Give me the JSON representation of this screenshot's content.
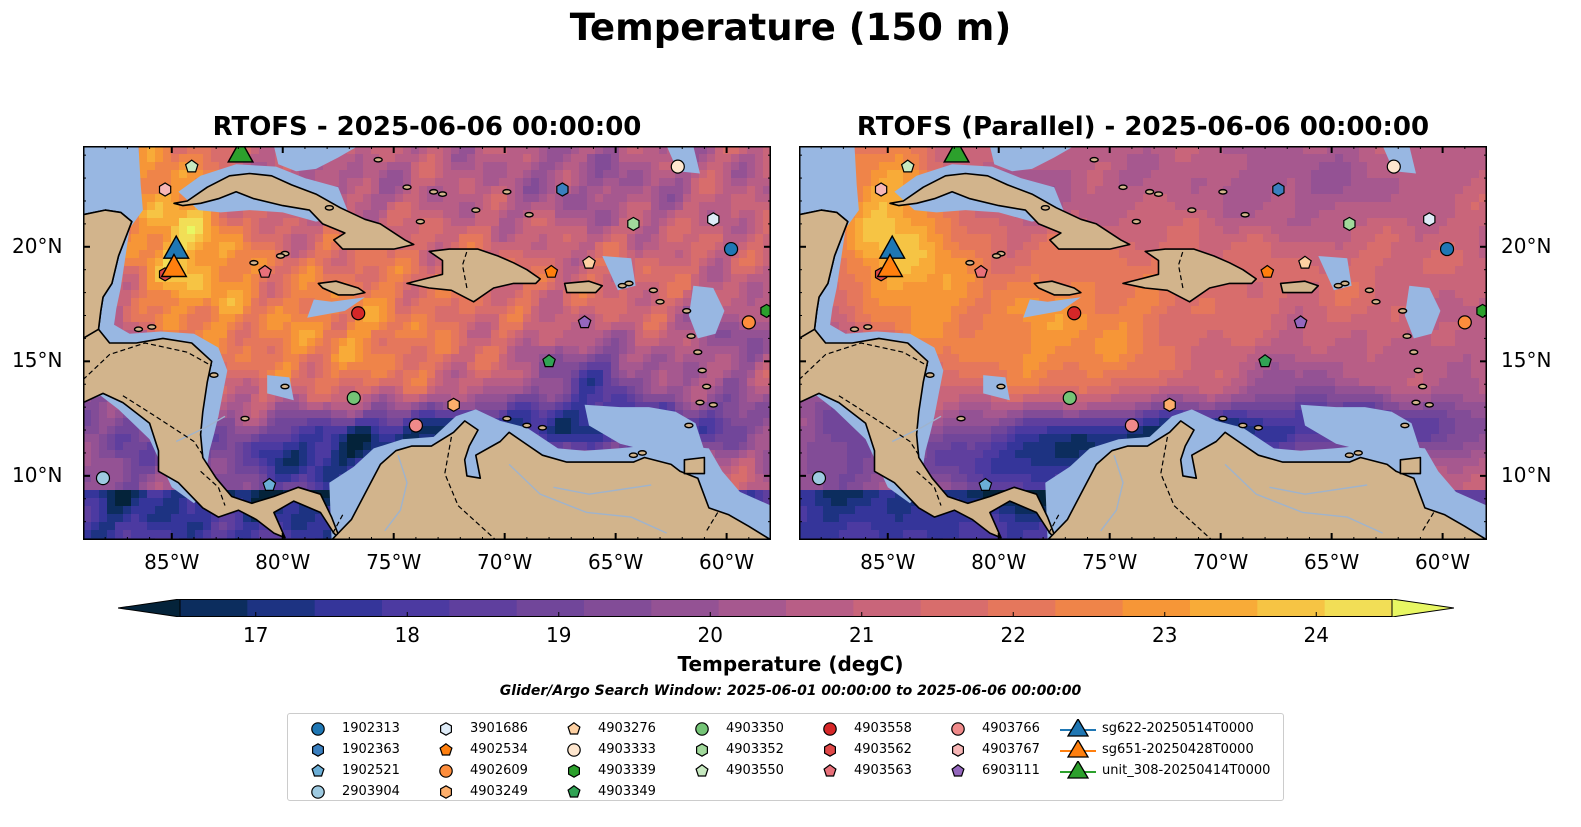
{
  "figure": {
    "suptitle": "Temperature (150 m)",
    "search_window": "Glider/Argo Search Window: 2025-06-01 00:00:00 to 2025-06-06 00:00:00"
  },
  "panels": [
    {
      "title": "RTOFS - 2025-06-06 00:00:00",
      "model": "RTOFS",
      "yaxis_side": "left"
    },
    {
      "title": "RTOFS (Parallel) - 2025-06-06 00:00:00",
      "model": "RTOFS (Parallel)",
      "yaxis_side": "right"
    }
  ],
  "axes": {
    "lon_range": [
      -89,
      -58
    ],
    "lat_range": [
      7.2,
      24.4
    ],
    "lon_ticks": [
      "85°W",
      "80°W",
      "75°W",
      "70°W",
      "65°W",
      "60°W"
    ],
    "lon_tick_values": [
      -85,
      -80,
      -75,
      -70,
      -65,
      -60
    ],
    "lat_ticks": [
      "10°N",
      "15°N",
      "20°N"
    ],
    "lat_tick_values": [
      10,
      15,
      20
    ]
  },
  "colorbar": {
    "label": "Temperature (degC)",
    "ticks": [
      "17",
      "18",
      "19",
      "20",
      "21",
      "22",
      "23",
      "24"
    ],
    "range": [
      16.5,
      24.5
    ],
    "step": 0.5,
    "extend": "both",
    "colormap": "thermal",
    "colors": [
      "#04233a",
      "#0c2d5e",
      "#1d3382",
      "#35359a",
      "#4c3aa1",
      "#5f3f9e",
      "#71469a",
      "#824c97",
      "#945294",
      "#a6588f",
      "#b85e86",
      "#c9657a",
      "#d86d6c",
      "#e5775c",
      "#ef8449",
      "#f69637",
      "#f8ab38",
      "#f6c444",
      "#f2de56",
      "#e8f763"
    ]
  },
  "map_colors": {
    "land": "#d2b48c",
    "shelf": "#98b7e2",
    "coast": "#000000",
    "rivers": "#9fb3cc"
  },
  "legend": {
    "items": [
      {
        "label": "1902313",
        "marker": "circle",
        "color": "#1f77b4"
      },
      {
        "label": "1902363",
        "marker": "hexagon",
        "color": "#3a7fbf"
      },
      {
        "label": "1902521",
        "marker": "pentagon",
        "color": "#6baed6"
      },
      {
        "label": "2903904",
        "marker": "circle",
        "color": "#9ecae1"
      },
      {
        "label": "3901686",
        "marker": "hexagon",
        "color": "#deebf7"
      },
      {
        "label": "4902534",
        "marker": "pentagon",
        "color": "#ff7f0e"
      },
      {
        "label": "4902609",
        "marker": "circle",
        "color": "#fd8d3c"
      },
      {
        "label": "4903249",
        "marker": "hexagon",
        "color": "#fdae6b"
      },
      {
        "label": "4903276",
        "marker": "pentagon",
        "color": "#fdd0a2"
      },
      {
        "label": "4903333",
        "marker": "circle",
        "color": "#fee6ce"
      },
      {
        "label": "4903339",
        "marker": "hexagon",
        "color": "#2ca02c"
      },
      {
        "label": "4903349",
        "marker": "pentagon",
        "color": "#31a354"
      },
      {
        "label": "4903350",
        "marker": "circle",
        "color": "#74c476"
      },
      {
        "label": "4903352",
        "marker": "hexagon",
        "color": "#a1d99b"
      },
      {
        "label": "4903550",
        "marker": "pentagon",
        "color": "#c7e9c0"
      },
      {
        "label": "4903558",
        "marker": "circle",
        "color": "#d62728"
      },
      {
        "label": "4903562",
        "marker": "hexagon",
        "color": "#e04848"
      },
      {
        "label": "4903563",
        "marker": "pentagon",
        "color": "#e8707a"
      },
      {
        "label": "4903766",
        "marker": "circle",
        "color": "#f08a8a"
      },
      {
        "label": "4903767",
        "marker": "hexagon",
        "color": "#f7b6b6"
      },
      {
        "label": "6903111",
        "marker": "pentagon",
        "color": "#9467bd"
      },
      {
        "label": "sg622-20250514T0000",
        "marker": "triangle",
        "color": "#1f77b4"
      },
      {
        "label": "sg651-20250428T0000",
        "marker": "triangle",
        "color": "#ff7f0e"
      },
      {
        "label": "unit_308-20250414T0000",
        "marker": "triangle",
        "color": "#2ca02c"
      }
    ]
  },
  "chart_data": {
    "type": "scatter",
    "title": "Temperature (150 m)",
    "xlabel": "",
    "ylabel": "",
    "xlim": [
      -89,
      -58
    ],
    "ylim": [
      7.2,
      24.4
    ],
    "series": [
      {
        "name": "1902313",
        "x": [
          -59.8
        ],
        "y": [
          19.9
        ]
      },
      {
        "name": "1902363",
        "x": [
          -67.4
        ],
        "y": [
          22.5
        ]
      },
      {
        "name": "1902521",
        "x": [
          -80.6
        ],
        "y": [
          9.6
        ]
      },
      {
        "name": "2903904",
        "x": [
          -88.1
        ],
        "y": [
          9.9
        ]
      },
      {
        "name": "3901686",
        "x": [
          -60.6
        ],
        "y": [
          21.2
        ]
      },
      {
        "name": "4902534",
        "x": [
          -67.9
        ],
        "y": [
          18.9
        ]
      },
      {
        "name": "4902609",
        "x": [
          -59.0
        ],
        "y": [
          16.7
        ]
      },
      {
        "name": "4903249",
        "x": [
          -72.3
        ],
        "y": [
          13.1
        ]
      },
      {
        "name": "4903276",
        "x": [
          -66.2
        ],
        "y": [
          19.3
        ]
      },
      {
        "name": "4903333",
        "x": [
          -62.2
        ],
        "y": [
          23.5
        ]
      },
      {
        "name": "4903339",
        "x": [
          -58.2
        ],
        "y": [
          17.2
        ]
      },
      {
        "name": "4903349",
        "x": [
          -68.0
        ],
        "y": [
          15.0
        ]
      },
      {
        "name": "4903350",
        "x": [
          -76.8
        ],
        "y": [
          13.4
        ]
      },
      {
        "name": "4903352",
        "x": [
          -64.2
        ],
        "y": [
          21.0
        ]
      },
      {
        "name": "4903550",
        "x": [
          -84.1
        ],
        "y": [
          23.5
        ]
      },
      {
        "name": "4903558",
        "x": [
          -76.6
        ],
        "y": [
          17.1
        ]
      },
      {
        "name": "4903562",
        "x": [
          -85.3
        ],
        "y": [
          18.8
        ]
      },
      {
        "name": "4903563",
        "x": [
          -80.8
        ],
        "y": [
          18.9
        ]
      },
      {
        "name": "4903766",
        "x": [
          -74.0
        ],
        "y": [
          12.2
        ]
      },
      {
        "name": "4903767",
        "x": [
          -85.3
        ],
        "y": [
          22.5
        ]
      },
      {
        "name": "6903111",
        "x": [
          -66.4
        ],
        "y": [
          16.7
        ]
      },
      {
        "name": "sg622-20250514T0000",
        "x": [
          -84.8
        ],
        "y": [
          19.9
        ]
      },
      {
        "name": "sg651-20250428T0000",
        "x": [
          -84.9
        ],
        "y": [
          19.1
        ]
      },
      {
        "name": "unit_308-20250414T0000",
        "x": [
          -81.9
        ],
        "y": [
          24.1
        ]
      }
    ]
  }
}
